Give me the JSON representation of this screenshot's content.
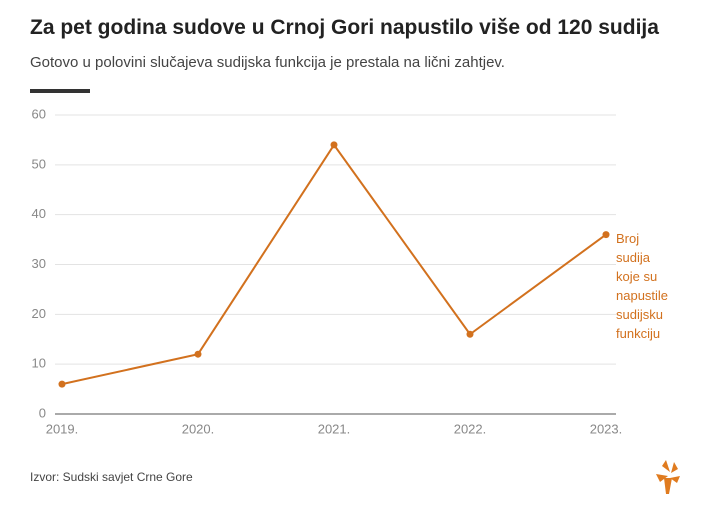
{
  "chart_data": {
    "type": "line",
    "title": "Za pet godina sudove u Crnoj Gori napustilo više od 120 sudija",
    "subtitle": "Gotovo u polovini slučajeva sudijska funkcija je prestala na lični zahtjev.",
    "source": "Izvor: Sudski savjet Crne Gore",
    "categories": [
      "2019.",
      "2020.",
      "2021.",
      "2022.",
      "2023."
    ],
    "series": [
      {
        "name": "Broj sudija koje su napustile sudijsku funkciju",
        "color": "#d2711e",
        "values": [
          6,
          12,
          54,
          16,
          36
        ]
      }
    ],
    "ylim": [
      0,
      60
    ],
    "yticks": [
      0,
      10,
      20,
      30,
      40,
      50,
      60
    ],
    "grid": true
  }
}
